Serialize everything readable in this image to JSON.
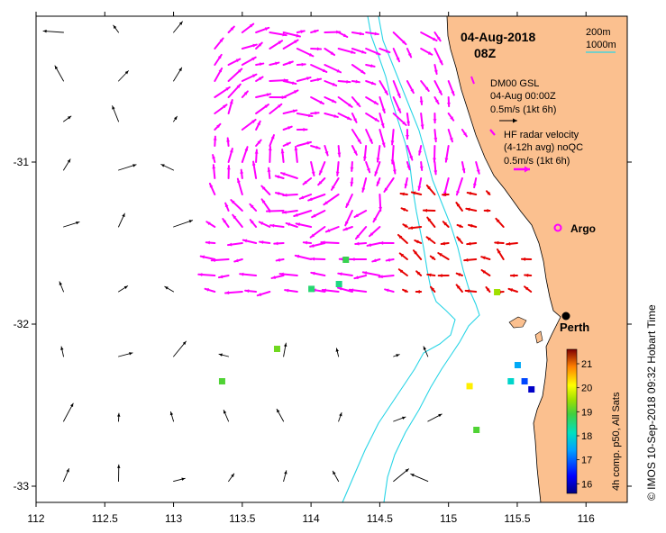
{
  "header": {
    "date": "04-Aug-2018",
    "time": "08Z"
  },
  "scale_legend": {
    "depth1": "200m",
    "depth2": "1000m"
  },
  "model_legend": {
    "line1": "DM00 GSL",
    "line2": "04-Aug 00:00Z",
    "line3": "0.5m/s (1kt 6h)"
  },
  "radar_legend": {
    "line1": "HF radar velocity",
    "line2": "(4-12h avg) noQC",
    "line3": "0.5m/s (1kt 6h)"
  },
  "places": {
    "argo": "Argo",
    "perth": "Perth"
  },
  "colorbar": {
    "label": "4h comp. p50, All Sats",
    "ticks": [
      "16",
      "17",
      "18",
      "19",
      "20",
      "21"
    ],
    "range": [
      15.6,
      21.6
    ]
  },
  "credit": "© IMOS 10-Sep-2018 09:32 Hobart Time",
  "axes": {
    "x_ticks": [
      "112",
      "112.5",
      "113",
      "113.5",
      "114",
      "114.5",
      "115",
      "115.5",
      "116"
    ],
    "y_ticks": [
      "-31",
      "-32",
      "-33"
    ],
    "xlim": [
      112.0,
      116.3
    ],
    "ylim": [
      -33.1,
      -30.1
    ]
  },
  "colors": {
    "land": "#fbc08f",
    "bathymetry": "#29d5e6",
    "radar": "#ff00ff",
    "radar_red": "#e60000",
    "model": "#000000"
  },
  "model_grid": {
    "lons": [
      112.2,
      112.6,
      113.0,
      113.4,
      113.8,
      114.2,
      114.6,
      114.85
    ],
    "lats": [
      -30.2,
      -30.5,
      -30.75,
      -31.05,
      -31.4,
      -31.8,
      -32.2,
      -32.6,
      -32.97
    ]
  },
  "radar_region": {
    "lon_range": [
      113.3,
      115.2
    ],
    "lat_range": [
      -31.9,
      -30.2
    ],
    "red_lon_range": [
      114.6,
      115.6
    ],
    "red_lat_range": [
      -31.9,
      -31.2
    ]
  },
  "sst_patches": [
    {
      "lon": 115.5,
      "lat": -32.25,
      "temp": 17.5
    },
    {
      "lon": 115.55,
      "lat": -32.35,
      "temp": 16.8
    },
    {
      "lon": 115.45,
      "lat": -32.35,
      "temp": 18.0
    },
    {
      "lon": 115.6,
      "lat": -32.4,
      "temp": 16.0
    },
    {
      "lon": 115.15,
      "lat": -32.38,
      "temp": 20.2
    },
    {
      "lon": 115.2,
      "lat": -32.65,
      "temp": 19.0
    },
    {
      "lon": 114.0,
      "lat": -31.78,
      "temp": 18.6
    },
    {
      "lon": 114.25,
      "lat": -31.6,
      "temp": 18.8
    },
    {
      "lon": 113.75,
      "lat": -32.15,
      "temp": 19.2
    },
    {
      "lon": 113.35,
      "lat": -32.35,
      "temp": 19.0
    },
    {
      "lon": 115.35,
      "lat": -31.8,
      "temp": 19.5
    },
    {
      "lon": 114.2,
      "lat": -31.75,
      "temp": 18.5
    }
  ]
}
